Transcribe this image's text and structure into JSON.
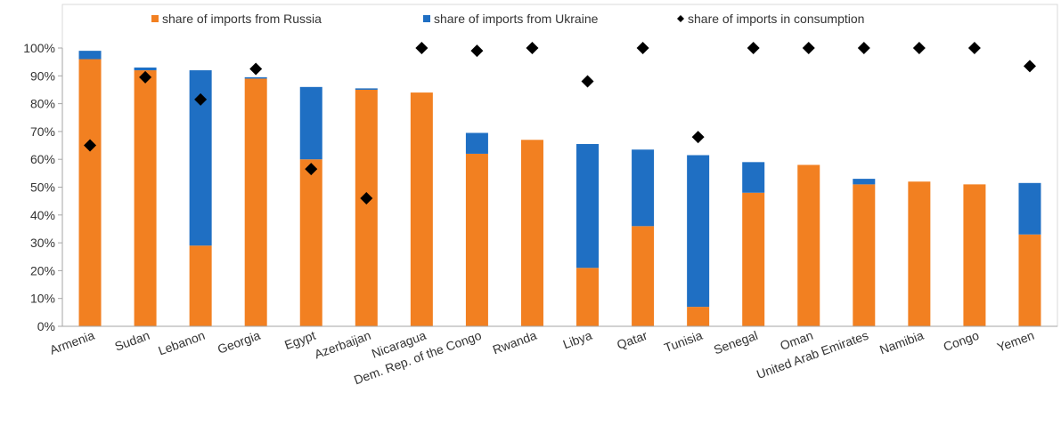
{
  "chart_data": {
    "type": "bar",
    "stacked": true,
    "categories": [
      "Armenia",
      "Sudan",
      "Lebanon",
      "Georgia",
      "Egypt",
      "Azerbaijan",
      "Nicaragua",
      "Dem. Rep. of the Congo",
      "Rwanda",
      "Libya",
      "Qatar",
      "Tunisia",
      "Senegal",
      "Oman",
      "United Arab Emirates",
      "Namibia",
      "Congo",
      "Yemen"
    ],
    "series": [
      {
        "name": "share of imports from Russia",
        "kind": "bar",
        "color": "#f28021",
        "values": [
          96,
          92,
          29,
          89,
          60,
          85,
          84,
          62,
          67,
          21,
          36,
          7,
          48,
          58,
          51,
          52,
          51,
          33
        ]
      },
      {
        "name": "share of imports from Ukraine",
        "kind": "bar",
        "color": "#1f6fc3",
        "values": [
          3,
          1,
          63,
          0.5,
          26,
          0.5,
          0,
          7.5,
          0,
          44.5,
          27.5,
          54.5,
          11,
          0,
          2,
          0,
          0,
          18.5
        ]
      },
      {
        "name": "share of imports in consumption",
        "kind": "marker",
        "marker": "diamond",
        "color": "#000000",
        "values": [
          65,
          89.5,
          81.5,
          92.5,
          56.5,
          46,
          100,
          99,
          100,
          88,
          100,
          68,
          100,
          100,
          100,
          100,
          100,
          93.5
        ]
      }
    ],
    "y_ticks": [
      "0%",
      "10%",
      "20%",
      "30%",
      "40%",
      "50%",
      "60%",
      "70%",
      "80%",
      "90%",
      "100%"
    ],
    "ylim": [
      0,
      100
    ],
    "legend_position": "top",
    "grid": false
  }
}
